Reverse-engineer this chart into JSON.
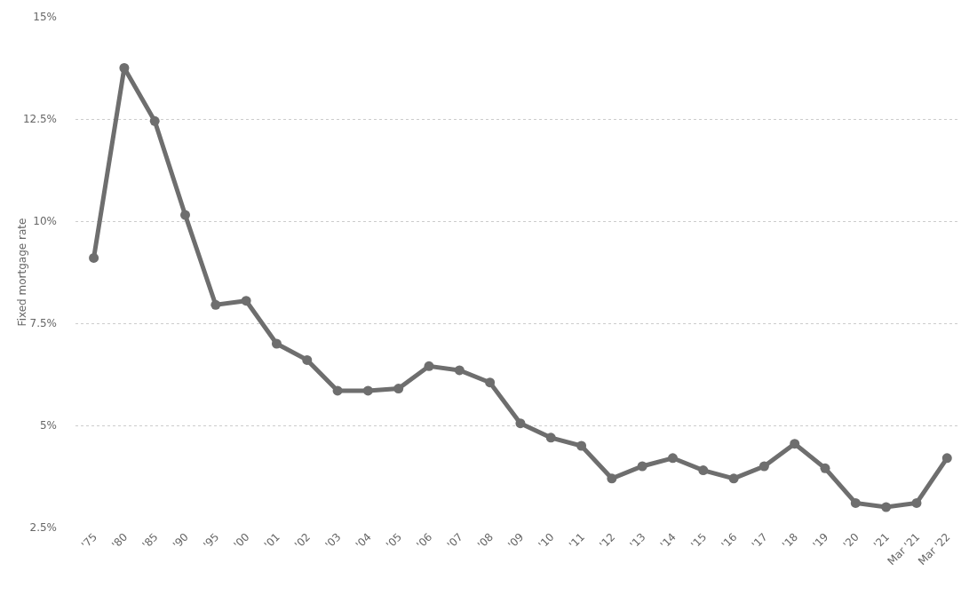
{
  "chart_data": {
    "type": "line",
    "ylabel": "Fixed mortgage rate",
    "categories": [
      "'75",
      "'80",
      "'85",
      "'90",
      "'95",
      "'00",
      "'01",
      "'02",
      "'03",
      "'04",
      "'05",
      "'06",
      "'07",
      "'08",
      "'09",
      "'10",
      "'11",
      "'12",
      "'13",
      "'14",
      "'15",
      "'16",
      "'17",
      "'18",
      "'19",
      "'20",
      "'21",
      "Mar '21",
      "Mar '22"
    ],
    "series": [
      {
        "color": "#6e6e6e",
        "values": [
          9.1,
          13.75,
          12.45,
          10.15,
          7.95,
          8.05,
          7.0,
          6.6,
          5.85,
          5.85,
          5.9,
          6.45,
          6.35,
          6.05,
          5.05,
          4.7,
          4.5,
          3.7,
          4.0,
          4.2,
          3.9,
          3.7,
          4.0,
          4.55,
          3.95,
          3.1,
          3.0,
          3.1,
          4.2
        ]
      }
    ],
    "ylim": [
      2.5,
      15
    ],
    "yticks": [
      {
        "value": 2.5,
        "label": "2.5%"
      },
      {
        "value": 5,
        "label": "5%"
      },
      {
        "value": 7.5,
        "label": "7.5%"
      },
      {
        "value": 10,
        "label": "10%"
      },
      {
        "value": 12.5,
        "label": "12.5%"
      },
      {
        "value": 15,
        "label": "15%"
      }
    ],
    "grid": "y",
    "marker": "circle",
    "line_style": "solid"
  }
}
